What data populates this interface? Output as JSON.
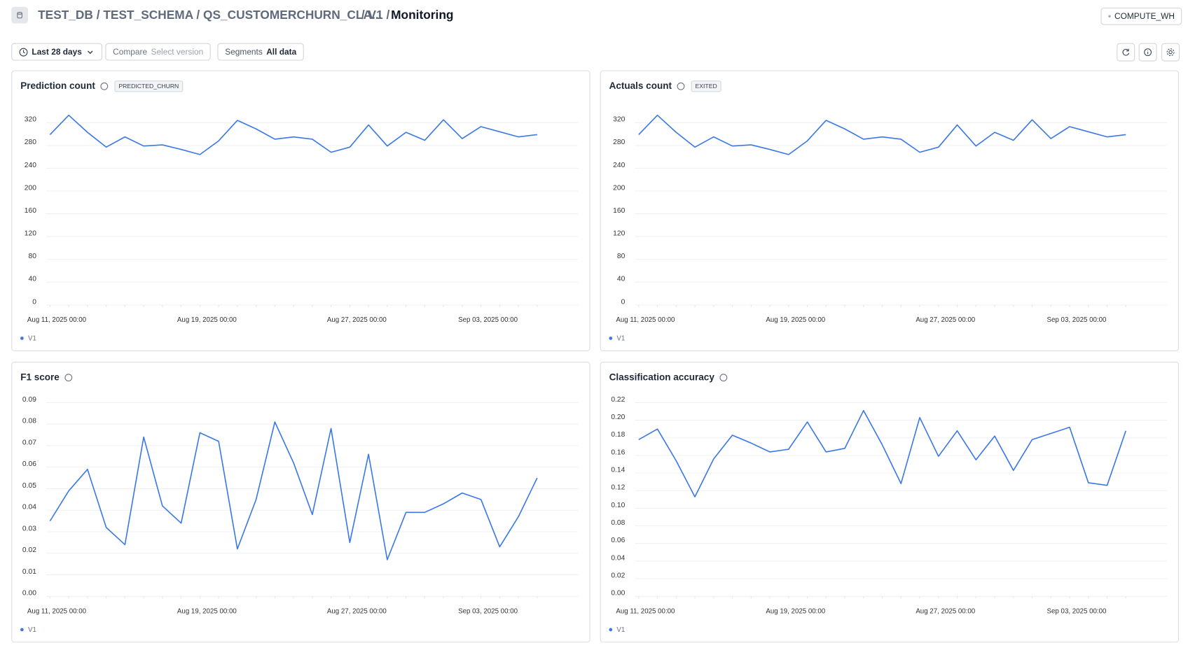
{
  "header": {
    "path": "TEST_DB / TEST_SCHEMA / QS_CUSTOMERCHURN_CLA...",
    "version": "/ V1 /",
    "page": "Monitoring",
    "warehouse": "COMPUTE_WH"
  },
  "toolbar": {
    "range": "Last 28 days",
    "compare_label": "Compare",
    "compare_value": "Select version",
    "segments_label": "Segments",
    "segments_value": "All data"
  },
  "chart_data": [
    {
      "type": "line",
      "title": "Prediction count",
      "tag": "PREDICTED_CHURN",
      "categories": [
        "Aug 11, 2025 00:00",
        null,
        null,
        null,
        null,
        null,
        null,
        null,
        "Aug 19, 2025 00:00",
        null,
        null,
        null,
        null,
        null,
        null,
        null,
        "Aug 27, 2025 00:00",
        null,
        null,
        null,
        null,
        null,
        null,
        "Sep 03, 2025 00:00",
        null,
        null,
        null
      ],
      "series": [
        {
          "name": "V1",
          "color": "#3b78e7",
          "values": [
            299,
            333,
            303,
            277,
            295,
            279,
            281,
            273,
            264,
            288,
            324,
            309,
            291,
            295,
            291,
            268,
            277,
            316,
            279,
            303,
            289,
            325,
            292,
            313,
            304,
            295,
            299
          ]
        }
      ],
      "ylim": [
        0,
        340
      ],
      "yticks": [
        0,
        40,
        80,
        120,
        160,
        200,
        240,
        280,
        320
      ],
      "grid": true,
      "legend": "bottom-left"
    },
    {
      "type": "line",
      "title": "Actuals count",
      "tag": "EXITED",
      "categories": [
        "Aug 11, 2025 00:00",
        null,
        null,
        null,
        null,
        null,
        null,
        null,
        "Aug 19, 2025 00:00",
        null,
        null,
        null,
        null,
        null,
        null,
        null,
        "Aug 27, 2025 00:00",
        null,
        null,
        null,
        null,
        null,
        null,
        "Sep 03, 2025 00:00",
        null,
        null,
        null
      ],
      "series": [
        {
          "name": "V1",
          "color": "#3b78e7",
          "values": [
            299,
            333,
            303,
            277,
            295,
            279,
            281,
            273,
            264,
            288,
            324,
            309,
            291,
            295,
            291,
            268,
            277,
            316,
            279,
            303,
            289,
            325,
            292,
            313,
            304,
            295,
            299
          ]
        }
      ],
      "ylim": [
        0,
        340
      ],
      "yticks": [
        0,
        40,
        80,
        120,
        160,
        200,
        240,
        280,
        320
      ],
      "grid": true,
      "legend": "bottom-left"
    },
    {
      "type": "line",
      "title": "F1 score",
      "categories": [
        "Aug 11, 2025 00:00",
        null,
        null,
        null,
        null,
        null,
        null,
        null,
        "Aug 19, 2025 00:00",
        null,
        null,
        null,
        null,
        null,
        null,
        null,
        "Aug 27, 2025 00:00",
        null,
        null,
        null,
        null,
        null,
        null,
        "Sep 03, 2025 00:00",
        null,
        null,
        null
      ],
      "series": [
        {
          "name": "V1",
          "color": "#3b78e7",
          "values": [
            0.035,
            0.049,
            0.059,
            0.032,
            0.024,
            0.074,
            0.042,
            0.034,
            0.076,
            0.072,
            0.022,
            0.045,
            0.081,
            0.062,
            0.038,
            0.078,
            0.025,
            0.066,
            0.017,
            0.039,
            0.039,
            0.043,
            0.048,
            0.045,
            0.023,
            0.037,
            0.055
          ]
        }
      ],
      "ylim": [
        0,
        0.09
      ],
      "yticks": [
        {
          "value": 0,
          "label": "0.00"
        },
        0.01,
        0.02,
        0.03,
        0.04,
        0.05,
        0.06,
        0.07,
        0.08,
        0.09
      ],
      "grid": true,
      "legend": "bottom-left"
    },
    {
      "type": "line",
      "title": "Classification accuracy",
      "categories": [
        "Aug 11, 2025 00:00",
        null,
        null,
        null,
        null,
        null,
        null,
        null,
        "Aug 19, 2025 00:00",
        null,
        null,
        null,
        null,
        null,
        null,
        null,
        "Aug 27, 2025 00:00",
        null,
        null,
        null,
        null,
        null,
        null,
        "Sep 03, 2025 00:00",
        null,
        null,
        null
      ],
      "series": [
        {
          "name": "V1",
          "color": "#3b78e7",
          "values": [
            0.178,
            0.19,
            0.154,
            0.113,
            0.156,
            0.183,
            0.174,
            0.164,
            0.167,
            0.198,
            0.164,
            0.168,
            0.211,
            0.172,
            0.128,
            0.203,
            0.159,
            0.188,
            0.155,
            0.182,
            0.143,
            0.178,
            0.185,
            0.192,
            0.129,
            0.126,
            0.188
          ]
        }
      ],
      "ylim": [
        0,
        0.22
      ],
      "yticks": [
        {
          "value": 0,
          "label": "0.00"
        },
        0.02,
        0.04,
        0.06,
        0.08,
        {
          "value": 0.1,
          "label": "0.10"
        },
        0.12,
        0.14,
        0.16,
        0.18,
        {
          "value": 0.2,
          "label": "0.20"
        },
        0.22
      ],
      "grid": true,
      "legend": "bottom-left"
    }
  ]
}
